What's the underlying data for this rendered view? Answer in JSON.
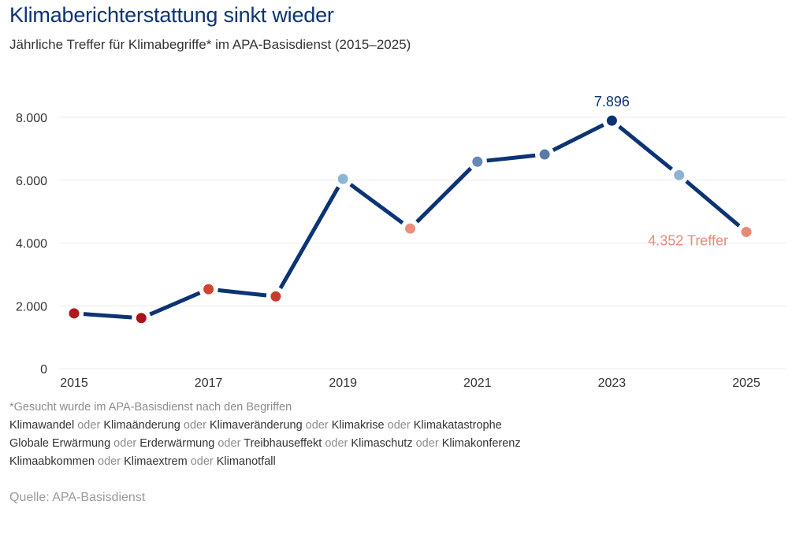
{
  "header": {
    "title": "Klimaberichterstattung sinkt wieder",
    "subtitle": "Jährliche Treffer für Klimabegriffe* im APA-Basisdienst (2015–2025)"
  },
  "chart_data": {
    "type": "line",
    "title": "Klimaberichterstattung sinkt wieder",
    "subtitle": "Jährliche Treffer für Klimabegriffe* im APA-Basisdienst (2015–2025)",
    "xlabel": "",
    "ylabel": "",
    "x": [
      2015,
      2016,
      2017,
      2018,
      2019,
      2020,
      2021,
      2022,
      2023,
      2024,
      2025
    ],
    "series": [
      {
        "name": "Treffer",
        "values": [
          1760,
          1610,
          2530,
          2300,
          6040,
          4460,
          6590,
          6820,
          7896,
          6160,
          4352
        ],
        "line_color": "#0c3474",
        "point_colors": [
          "#b01a1f",
          "#a8141a",
          "#cf4530",
          "#c93a2e",
          "#8db6d6",
          "#e8907b",
          "#6788b6",
          "#5a7aab",
          "#0c3474",
          "#8eb2d3",
          "#e9897a"
        ]
      }
    ],
    "ylim": [
      0,
      8000
    ],
    "y_ticks": [
      0,
      2000,
      4000,
      6000,
      8000
    ],
    "y_tick_labels": [
      "0",
      "2.000",
      "4.000",
      "6.000",
      "8.000"
    ],
    "x_ticks": [
      2015,
      2017,
      2019,
      2021,
      2023,
      2025
    ],
    "x_tick_labels": [
      "2015",
      "2017",
      "2019",
      "2021",
      "2023",
      "2025"
    ],
    "grid": true,
    "annotations": [
      {
        "x": 2023,
        "label": "7.896",
        "color": "#0c3474",
        "placement": "above"
      },
      {
        "x": 2025,
        "label": "4.352 Treffer",
        "color": "#e9897a",
        "placement": "left"
      }
    ],
    "legend": "none"
  },
  "footnote": {
    "intro": "*Gesucht wurde im APA-Basisdienst nach den Begriffen",
    "connector": "oder",
    "lines": [
      [
        "Klimawandel",
        "Klimaänderung",
        "Klimaveränderung",
        "Klimakrise",
        "Klimakatastrophe"
      ],
      [
        "Globale Erwärmung",
        "Erderwärmung",
        "Treibhauseffekt",
        "Klimaschutz",
        "Klimakonferenz"
      ],
      [
        "Klimaabkommen",
        "Klimaextrem",
        "Klimanotfall"
      ]
    ]
  },
  "source": "Quelle: APA-Basisdienst"
}
